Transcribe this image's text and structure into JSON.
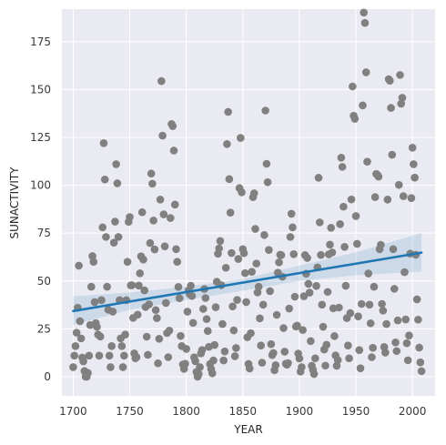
{
  "chart_data": {
    "type": "scatter",
    "title": "",
    "xlabel": "YEAR",
    "ylabel": "SUNACTIVITY",
    "xlim": [
      1690,
      2020
    ],
    "ylim": [
      -10,
      192
    ],
    "xticks": [
      1700,
      1750,
      1800,
      1850,
      1900,
      1950,
      2000
    ],
    "yticks": [
      0,
      25,
      50,
      75,
      100,
      125,
      150,
      175
    ],
    "grid": true,
    "background": "#eaeaf2",
    "grid_color": "#ffffff",
    "colors": {
      "points": "#808080",
      "regression_line": "#1f77b4",
      "confidence_band": "#1f77b4"
    },
    "regression": {
      "x": [
        1700,
        2008
      ],
      "y": [
        34.3,
        64.8
      ]
    },
    "confidence_band": {
      "x": [
        1700,
        1750,
        1800,
        1850,
        1900,
        1950,
        2008
      ],
      "lower": [
        27,
        35,
        40,
        45,
        50,
        53,
        55
      ],
      "upper": [
        42,
        44,
        47,
        51,
        58,
        65,
        75
      ]
    },
    "points": {
      "x": [
        1700,
        1701,
        1702,
        1703,
        1704,
        1705,
        1706,
        1707,
        1708,
        1709,
        1710,
        1711,
        1712,
        1713,
        1714,
        1715,
        1716,
        1717,
        1718,
        1719,
        1720,
        1721,
        1722,
        1723,
        1724,
        1725,
        1726,
        1727,
        1728,
        1729,
        1730,
        1731,
        1732,
        1733,
        1734,
        1735,
        1736,
        1737,
        1738,
        1739,
        1740,
        1741,
        1742,
        1743,
        1744,
        1745,
        1746,
        1747,
        1748,
        1749,
        1750,
        1751,
        1752,
        1753,
        1754,
        1755,
        1756,
        1757,
        1758,
        1759,
        1760,
        1761,
        1762,
        1763,
        1764,
        1765,
        1766,
        1767,
        1768,
        1769,
        1770,
        1771,
        1772,
        1773,
        1774,
        1775,
        1776,
        1777,
        1778,
        1779,
        1780,
        1781,
        1782,
        1783,
        1784,
        1785,
        1786,
        1787,
        1788,
        1789,
        1790,
        1791,
        1792,
        1793,
        1794,
        1795,
        1796,
        1797,
        1798,
        1799,
        1800,
        1801,
        1802,
        1803,
        1804,
        1805,
        1806,
        1807,
        1808,
        1809,
        1810,
        1811,
        1812,
        1813,
        1814,
        1815,
        1816,
        1817,
        1818,
        1819,
        1820,
        1821,
        1822,
        1823,
        1824,
        1825,
        1826,
        1827,
        1828,
        1829,
        1830,
        1831,
        1832,
        1833,
        1834,
        1835,
        1836,
        1837,
        1838,
        1839,
        1840,
        1841,
        1842,
        1843,
        1844,
        1845,
        1846,
        1847,
        1848,
        1849,
        1850,
        1851,
        1852,
        1853,
        1854,
        1855,
        1856,
        1857,
        1858,
        1859,
        1860,
        1861,
        1862,
        1863,
        1864,
        1865,
        1866,
        1867,
        1868,
        1869,
        1870,
        1871,
        1872,
        1873,
        1874,
        1875,
        1876,
        1877,
        1878,
        1879,
        1880,
        1881,
        1882,
        1883,
        1884,
        1885,
        1886,
        1887,
        1888,
        1889,
        1890,
        1891,
        1892,
        1893,
        1894,
        1895,
        1896,
        1897,
        1898,
        1899,
        1900,
        1901,
        1902,
        1903,
        1904,
        1905,
        1906,
        1907,
        1908,
        1909,
        1910,
        1911,
        1912,
        1913,
        1914,
        1915,
        1916,
        1917,
        1918,
        1919,
        1920,
        1921,
        1922,
        1923,
        1924,
        1925,
        1926,
        1927,
        1928,
        1929,
        1930,
        1931,
        1932,
        1933,
        1934,
        1935,
        1936,
        1937,
        1938,
        1939,
        1940,
        1941,
        1942,
        1943,
        1944,
        1945,
        1946,
        1947,
        1948,
        1949,
        1950,
        1951,
        1952,
        1953,
        1954,
        1955,
        1956,
        1957,
        1958,
        1959,
        1960,
        1961,
        1962,
        1963,
        1964,
        1965,
        1966,
        1967,
        1968,
        1969,
        1970,
        1971,
        1972,
        1973,
        1974,
        1975,
        1976,
        1977,
        1978,
        1979,
        1980,
        1981,
        1982,
        1983,
        1984,
        1985,
        1986,
        1987,
        1988,
        1989,
        1990,
        1991,
        1992,
        1993,
        1994,
        1995,
        1996,
        1997,
        1998,
        1999,
        2000,
        2001,
        2002,
        2003,
        2004,
        2005,
        2006,
        2007,
        2008
      ],
      "y": [
        5,
        11,
        16,
        23,
        36,
        58,
        29,
        20,
        10,
        8,
        3,
        0,
        0,
        2,
        11,
        27,
        47,
        63,
        60,
        39,
        28,
        26,
        22,
        11,
        21,
        40,
        78,
        122,
        103,
        73,
        47,
        35,
        11,
        5,
        16,
        34,
        70,
        81,
        111,
        101,
        73,
        40,
        20,
        16,
        5,
        11,
        22,
        40,
        60,
        80.9,
        83.4,
        47.7,
        47.8,
        30.7,
        12.2,
        9.6,
        10.2,
        32.4,
        47.6,
        54,
        62.9,
        85.9,
        61.2,
        45.1,
        36.4,
        20.9,
        11.4,
        37.8,
        69.8,
        106.1,
        100.8,
        81.6,
        66.5,
        34.8,
        30.6,
        7,
        19.8,
        92.5,
        154.4,
        125.9,
        84.8,
        68.1,
        38.5,
        22.8,
        10.2,
        24.1,
        82.9,
        132,
        130.9,
        118.1,
        89.9,
        66.6,
        60,
        46.9,
        41,
        21.3,
        16,
        6.4,
        4.1,
        6.8,
        14.5,
        34,
        45,
        43.1,
        47.5,
        42.2,
        28.1,
        10.1,
        8.1,
        2.5,
        0,
        1.4,
        5,
        12.2,
        13.9,
        35.4,
        45.8,
        41.1,
        30.1,
        23.9,
        15.6,
        6.6,
        4,
        1.8,
        8.5,
        16.6,
        36.3,
        49.6,
        64.2,
        67,
        70.9,
        47.8,
        27.5,
        8.5,
        13.2,
        56.9,
        121.5,
        138.3,
        103.2,
        85.7,
        64.6,
        36.7,
        24.2,
        10.7,
        15,
        40.1,
        61.5,
        98.5,
        124.7,
        96.3,
        66.6,
        64.5,
        54.1,
        39,
        20.6,
        6.7,
        4.3,
        22.7,
        54.8,
        93.8,
        95.8,
        77.2,
        59.1,
        44,
        47,
        30.5,
        16.3,
        7.3,
        37.6,
        74,
        139,
        111.2,
        101.6,
        66.2,
        44.7,
        17,
        11.3,
        12.4,
        3.4,
        6,
        32.3,
        54.3,
        59.7,
        63.7,
        63.5,
        52.2,
        25.4,
        13.1,
        6.8,
        6.3,
        7.1,
        35.6,
        73,
        85.1,
        78,
        64,
        41.8,
        26.2,
        26.7,
        12.1,
        9.5,
        2.7,
        5,
        24.4,
        42,
        63.5,
        53.8,
        62,
        48.5,
        43.9,
        18.6,
        5.7,
        3.6,
        1.4,
        9.6,
        47.4,
        57.1,
        103.9,
        80.6,
        63.6,
        37.6,
        26.1,
        14.2,
        5.8,
        16.7,
        44.3,
        63.9,
        69,
        77.8,
        64.9,
        35.7,
        21.2,
        11.1,
        5.7,
        8.7,
        36.1,
        79.7,
        114.4,
        109.6,
        88.8,
        67.8,
        47.5,
        30.6,
        16.3,
        9.6,
        33.2,
        92.6,
        151.6,
        136.3,
        134.7,
        83.9,
        69.4,
        31.5,
        13.9,
        4.4,
        38,
        141.7,
        190.2,
        184.8,
        159,
        112.3,
        53.9,
        37.6,
        27.9,
        10.2,
        15.1,
        47,
        93.8,
        105.9,
        105.5,
        104.5,
        66.6,
        68.9,
        38,
        34.5,
        15.5,
        12.6,
        27.5,
        92.5,
        155.4,
        154.6,
        140.4,
        115.9,
        66.6,
        45.9,
        17.9,
        13.4,
        29.4,
        100.2,
        157.6,
        142.6,
        145.7,
        94.3,
        54.6,
        29.9,
        17.5,
        8.6,
        21.5,
        64.3,
        93.3,
        119.6,
        111,
        104,
        63.7,
        40.4,
        29.8,
        15.2,
        7.5,
        2.9
      ]
    }
  }
}
